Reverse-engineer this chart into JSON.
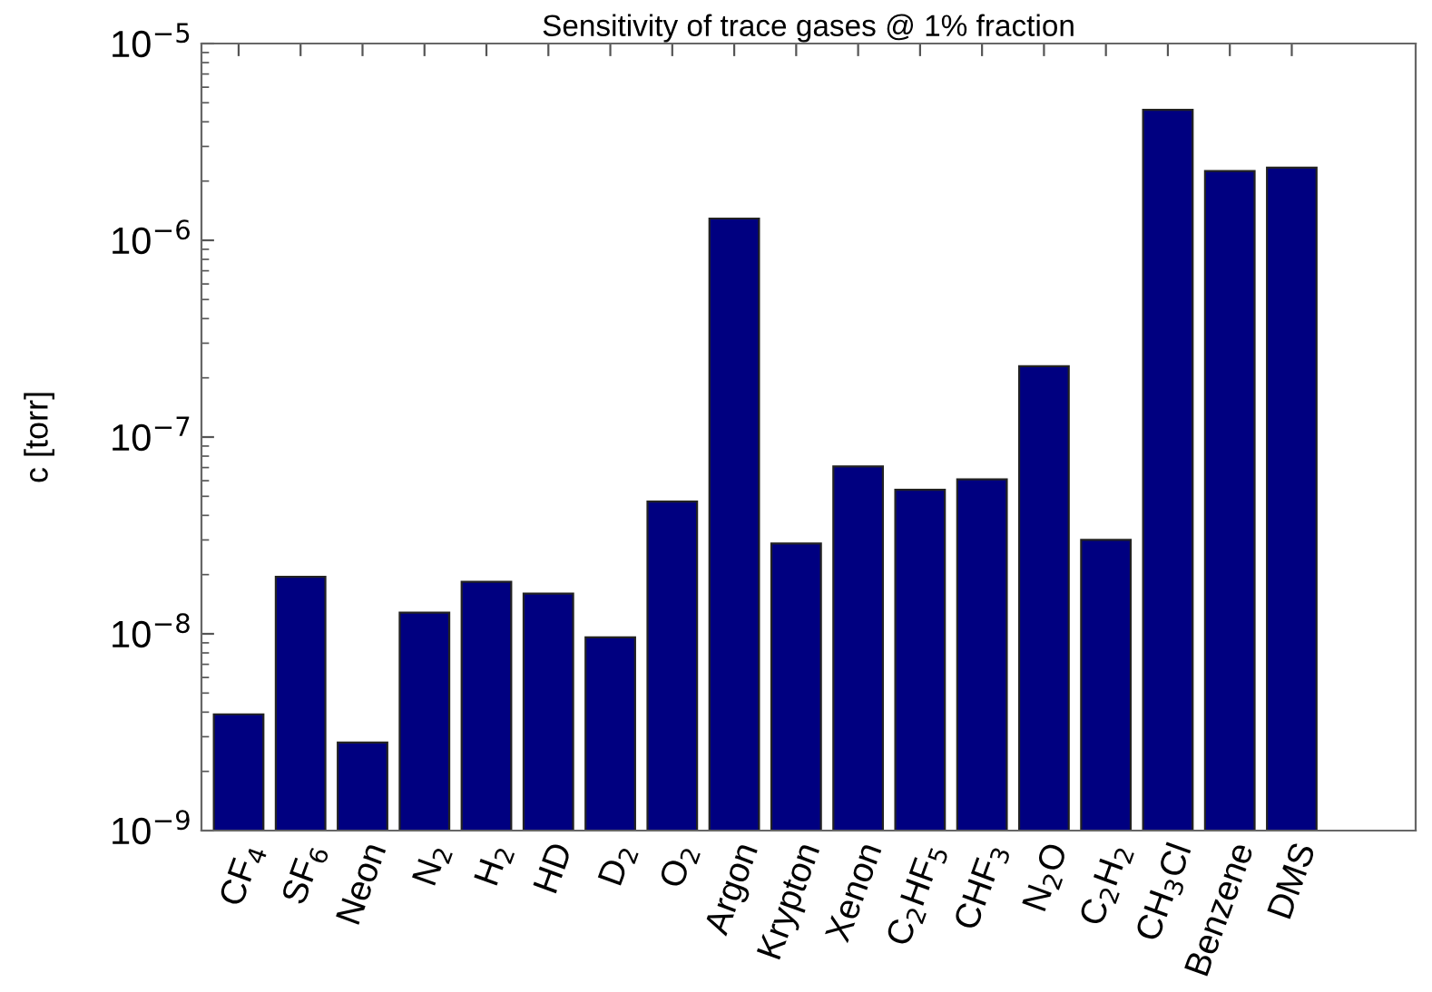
{
  "chart_data": {
    "type": "bar",
    "title": "Sensitivity of trace gases @ 1% fraction",
    "ylabel": "c [torr]",
    "categories": [
      "CF$_{4}$",
      "SF$_{6}$",
      "Neon",
      "N$_{2}$",
      "H$_{2}$",
      "HD",
      "D$_{2}$",
      "O$_{2}$",
      "Argon",
      "Krypton",
      "Xenon",
      "C$_{2}$HF$_{5}$",
      "CHF$_{3}$",
      "N$_{2}$O",
      "C$_{2}$H$_{2}$",
      "CH$_{3}$Cl",
      "Benzene",
      "DMS"
    ],
    "values": [
      3.9e-09,
      1.95e-08,
      2.8e-09,
      1.28e-08,
      1.84e-08,
      1.6e-08,
      9.6e-09,
      4.7e-08,
      1.29e-06,
      2.88e-08,
      7.1e-08,
      5.4e-08,
      6.1e-08,
      2.29e-07,
      3e-08,
      4.6e-06,
      2.25e-06,
      2.34e-06
    ],
    "color": "#000080",
    "log": "y",
    "ylim": [
      1e-09,
      1e-05
    ],
    "yticks": [
      {
        "value": 1e-09,
        "label": "10$^{−9}$"
      },
      {
        "value": 1e-08,
        "label": "10$^{−8}$"
      },
      {
        "value": 1e-07,
        "label": "10$^{−7}$"
      },
      {
        "value": 1e-06,
        "label": "10$^{−6}$"
      },
      {
        "value": 1e-05,
        "label": "10$^{−5}$"
      }
    ],
    "grid": false
  }
}
